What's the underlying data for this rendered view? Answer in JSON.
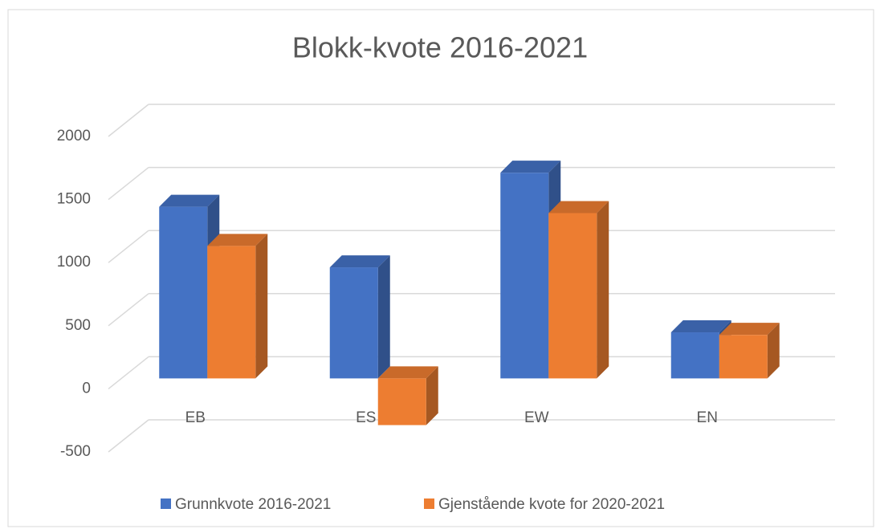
{
  "chart_data": {
    "type": "bar3d",
    "title": "Blokk-kvote 2016-2021",
    "categories": [
      "EB",
      "ES",
      "EW",
      "EN"
    ],
    "series": [
      {
        "name": "Grunnkvote 2016-2021",
        "color": "#4472c4",
        "values": [
          1360,
          880,
          1630,
          365
        ]
      },
      {
        "name": "Gjenstående kvote for 2020-2021",
        "color": "#ed7d31",
        "values": [
          1050,
          -370,
          1310,
          345
        ]
      }
    ],
    "ylim": [
      -500,
      2000
    ],
    "yticks": [
      -500,
      0,
      500,
      1000,
      1500,
      2000
    ],
    "grid": true,
    "legend": "bottom"
  }
}
